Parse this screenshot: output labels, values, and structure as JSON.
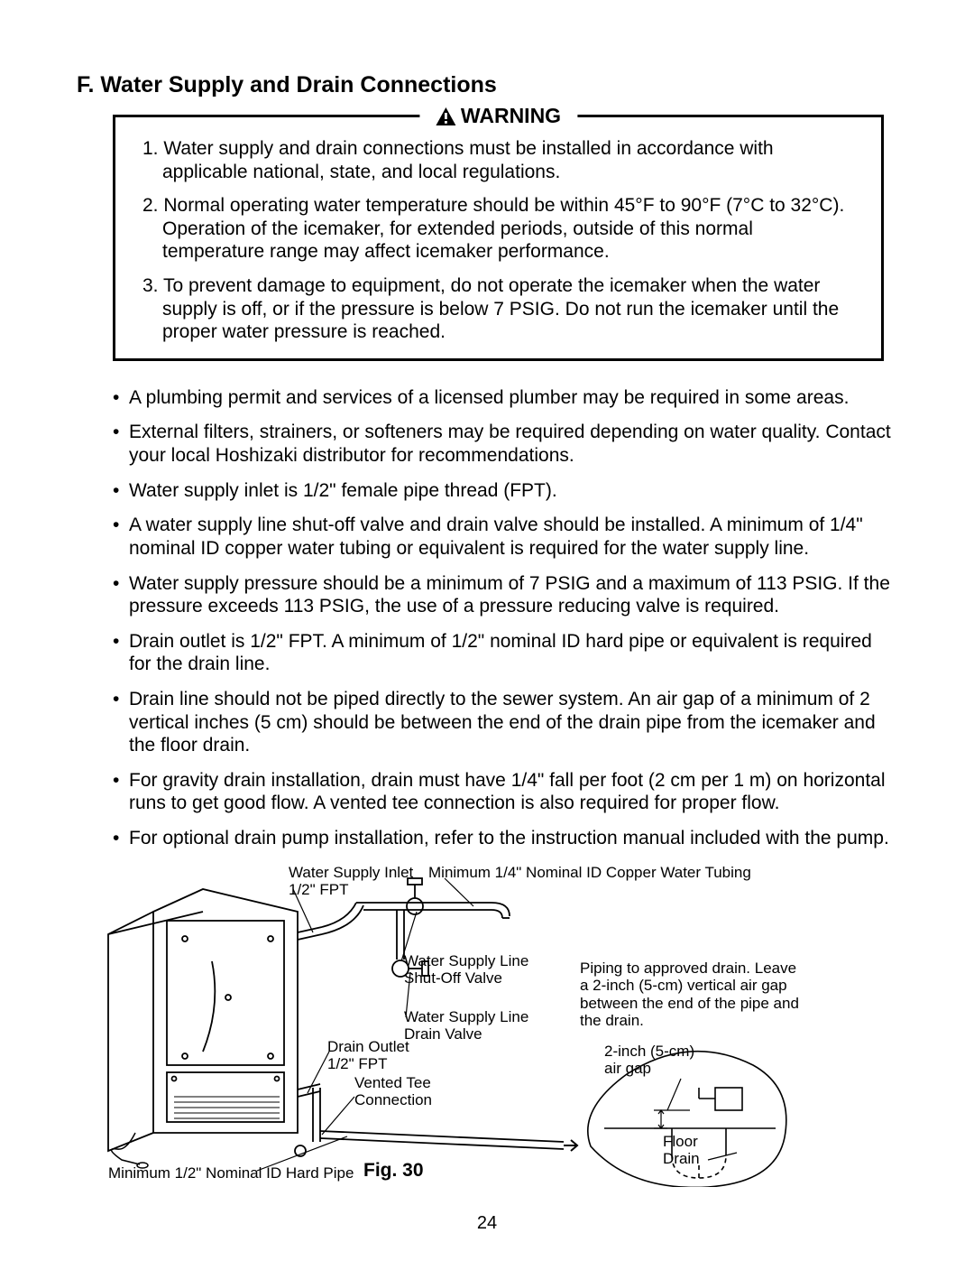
{
  "page": {
    "number": "24",
    "section_title": "F. Water Supply and Drain Connections"
  },
  "warning": {
    "title": "WARNING",
    "items": [
      "1. Water supply and drain connections must be installed in accordance with applicable national, state, and local regulations.",
      "2. Normal operating water temperature should be within 45°F to 90°F (7°C to 32°C). Operation of the icemaker, for extended periods, outside of this normal temperature range may affect icemaker performance.",
      "3. To prevent damage to equipment, do not operate the icemaker when the water supply is off, or if the pressure is below 7 PSIG. Do not run the icemaker until the proper water pressure is reached."
    ]
  },
  "bullets": [
    "A plumbing permit and services of a licensed plumber may be required in some areas.",
    "External filters, strainers, or softeners may be required depending on water quality. Contact your local Hoshizaki distributor for recommendations.",
    "Water supply inlet is 1/2\" female pipe thread (FPT).",
    "A water supply line shut-off valve and drain valve should be installed. A minimum of 1/4\" nominal ID copper water tubing or equivalent is required for the water supply line.",
    "Water supply pressure should be a minimum of 7 PSIG and a maximum of 113 PSIG. If the pressure exceeds 113 PSIG, the use of a pressure reducing valve is required.",
    "Drain outlet is 1/2\" FPT. A minimum of 1/2\" nominal ID hard pipe or equivalent is required for the drain line.",
    "Drain line should not be piped directly to the sewer system. An air gap of a minimum of 2 vertical inches (5 cm) should be between the end of the drain pipe from the icemaker and the floor drain.",
    "For gravity drain installation, drain must have 1/4\" fall per foot (2 cm per 1 m) on horizontal runs to get good flow. A vented tee connection is also required for proper flow.",
    "For optional drain pump installation, refer to the instruction manual included with the pump."
  ],
  "figure": {
    "number": "Fig. 30",
    "labels": {
      "water_supply_inlet": "Water Supply Inlet\n1/2\" FPT",
      "copper_tubing": "Minimum 1/4\" Nominal ID Copper Water Tubing",
      "shutoff_valve": "Water Supply Line\nShut-Off Valve",
      "drain_valve": "Water Supply Line\nDrain Valve",
      "drain_outlet": "Drain Outlet\n1/2\" FPT",
      "vented_tee": "Vented Tee\nConnection",
      "hard_pipe": "Minimum 1/2\" Nominal ID Hard Pipe",
      "piping_note": "Piping to approved drain. Leave a 2-inch (5-cm) vertical air gap between the end of the pipe and the drain.",
      "air_gap": "2-inch (5-cm)\nair gap",
      "floor_drain": "Floor\nDrain"
    },
    "style": {
      "stroke": "#000000",
      "stroke_width": 1.8,
      "thin_stroke_width": 1.0,
      "background": "#ffffff",
      "label_fontsize": 17
    }
  }
}
